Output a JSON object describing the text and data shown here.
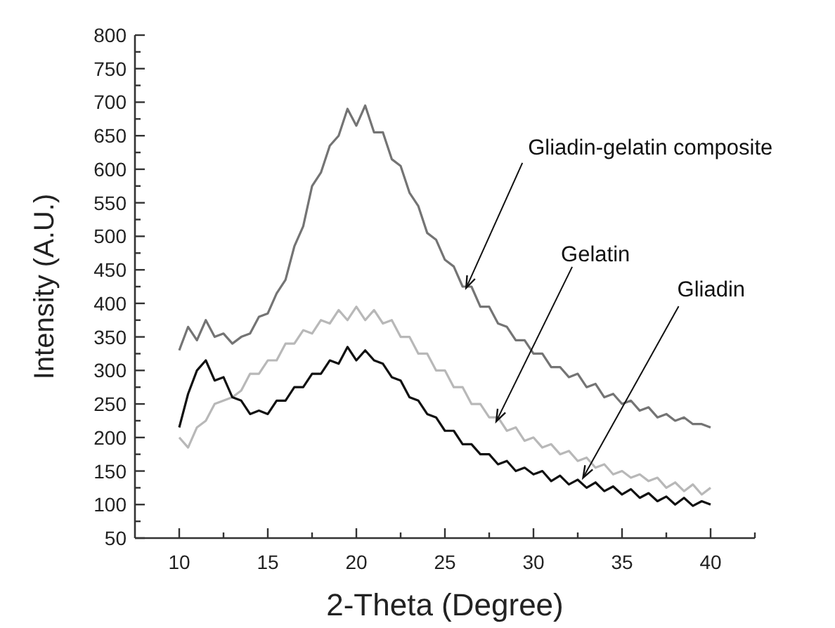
{
  "chart_data": {
    "type": "line",
    "xlabel": "2-Theta (Degree)",
    "ylabel": "Intensity (A.U.)",
    "x": [
      10,
      10.5,
      11,
      11.5,
      12,
      12.5,
      13,
      13.5,
      14,
      14.5,
      15,
      15.5,
      16,
      16.5,
      17,
      17.5,
      18,
      18.5,
      19,
      19.5,
      20,
      20.5,
      21,
      21.5,
      22,
      22.5,
      23,
      23.5,
      24,
      24.5,
      25,
      25.5,
      26,
      26.5,
      27,
      27.5,
      28,
      28.5,
      29,
      29.5,
      30,
      30.5,
      31,
      31.5,
      32,
      32.5,
      33,
      33.5,
      34,
      34.5,
      35,
      35.5,
      36,
      36.5,
      37,
      37.5,
      38,
      38.5,
      39,
      39.5,
      40
    ],
    "xlim": [
      7.5,
      42.5
    ],
    "xticks": [
      10,
      {
        "value": 12.5,
        "label": null
      },
      15,
      {
        "value": 17.5,
        "label": null
      },
      20,
      {
        "value": 22.5,
        "label": null
      },
      25,
      {
        "value": 27.5,
        "label": null
      },
      30,
      {
        "value": 32.5,
        "label": null
      },
      35,
      {
        "value": 37.5,
        "label": null
      },
      40,
      {
        "value": 42.5,
        "label": null
      }
    ],
    "ylim": [
      50,
      800
    ],
    "yticks": [
      50,
      {
        "value": 75,
        "label": null
      },
      100,
      {
        "value": 125,
        "label": null
      },
      150,
      {
        "value": 175,
        "label": null
      },
      200,
      {
        "value": 225,
        "label": null
      },
      250,
      {
        "value": 275,
        "label": null
      },
      300,
      {
        "value": 325,
        "label": null
      },
      350,
      {
        "value": 375,
        "label": null
      },
      400,
      {
        "value": 425,
        "label": null
      },
      450,
      {
        "value": 475,
        "label": null
      },
      500,
      {
        "value": 525,
        "label": null
      },
      550,
      {
        "value": 575,
        "label": null
      },
      600,
      {
        "value": 625,
        "label": null
      },
      650,
      {
        "value": 675,
        "label": null
      },
      700,
      {
        "value": 725,
        "label": null
      },
      750,
      {
        "value": 775,
        "label": null
      },
      800
    ],
    "grid": false,
    "marker": "none",
    "line_style": "solid",
    "series": [
      {
        "color": "#747474",
        "values": [
          330,
          365,
          345,
          375,
          350,
          355,
          340,
          350,
          355,
          380,
          385,
          415,
          435,
          485,
          515,
          575,
          595,
          635,
          650,
          690,
          665,
          695,
          655,
          655,
          615,
          605,
          565,
          545,
          505,
          495,
          465,
          455,
          425,
          425,
          395,
          395,
          370,
          365,
          345,
          345,
          325,
          325,
          305,
          305,
          290,
          295,
          275,
          280,
          260,
          265,
          250,
          255,
          240,
          245,
          230,
          235,
          225,
          230,
          220,
          220,
          215
        ]
      },
      {
        "color": "#b8b8b8",
        "values": [
          200,
          185,
          215,
          225,
          250,
          255,
          260,
          270,
          295,
          295,
          315,
          315,
          340,
          340,
          360,
          355,
          375,
          370,
          390,
          375,
          395,
          375,
          390,
          370,
          375,
          350,
          350,
          325,
          325,
          300,
          300,
          275,
          275,
          250,
          250,
          230,
          230,
          210,
          215,
          195,
          200,
          185,
          190,
          175,
          180,
          165,
          170,
          155,
          160,
          145,
          150,
          140,
          145,
          135,
          140,
          125,
          133,
          120,
          130,
          115,
          125
        ]
      },
      {
        "color": "#111111",
        "values": [
          215,
          265,
          300,
          315,
          285,
          290,
          260,
          255,
          235,
          240,
          235,
          255,
          255,
          275,
          275,
          295,
          295,
          315,
          310,
          335,
          315,
          330,
          315,
          310,
          290,
          285,
          260,
          255,
          235,
          230,
          210,
          210,
          190,
          190,
          175,
          175,
          160,
          165,
          150,
          155,
          145,
          150,
          135,
          143,
          130,
          137,
          125,
          133,
          120,
          127,
          115,
          123,
          110,
          117,
          105,
          112,
          100,
          110,
          98,
          105,
          100
        ]
      }
    ],
    "annotations": [
      {
        "text": "Gliadin-gelatin composite",
        "x": 26.2,
        "y": 423
      },
      {
        "text": "Gelatin",
        "x": 27.9,
        "y": 224
      },
      {
        "text": "Gliadin",
        "x": 32.8,
        "y": 140
      }
    ]
  }
}
